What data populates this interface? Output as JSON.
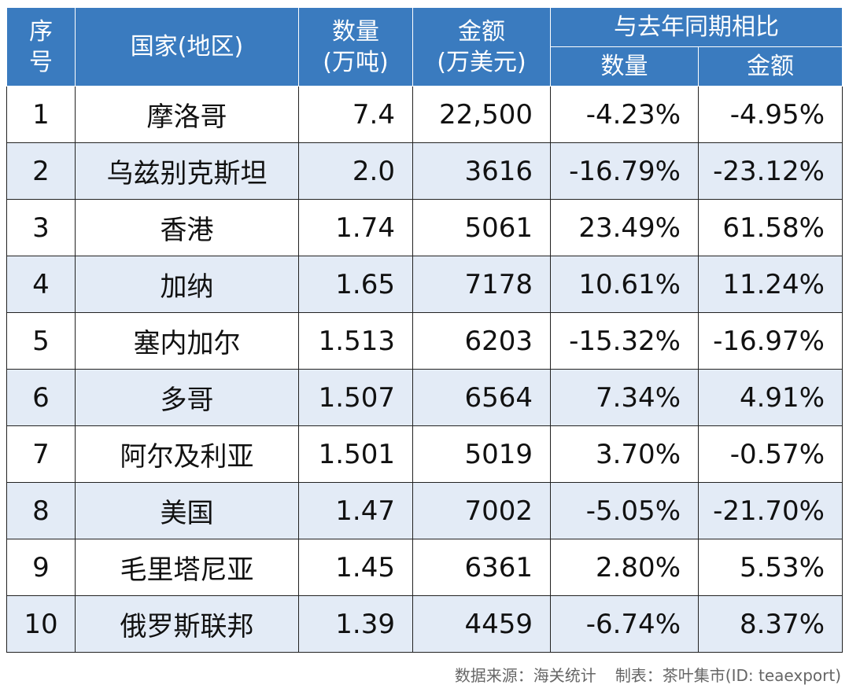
{
  "header": {
    "index": "序\n号",
    "index_line1": "序",
    "index_line2": "号",
    "country": "国家(地区)",
    "quantity_line1": "数量",
    "quantity_line2": "(万吨)",
    "amount_line1": "金额",
    "amount_line2": "(万美元)",
    "yoy_group": "与去年同期相比",
    "yoy_quantity": "数量",
    "yoy_amount": "金额"
  },
  "rows": [
    {
      "index": "1",
      "country": "摩洛哥",
      "quantity": "7.4",
      "amount": "22,500",
      "yoy_quantity": "-4.23%",
      "yoy_amount": "-4.95%"
    },
    {
      "index": "2",
      "country": "乌兹别克斯坦",
      "quantity": "2.0",
      "amount": "3616",
      "yoy_quantity": "-16.79%",
      "yoy_amount": "-23.12%"
    },
    {
      "index": "3",
      "country": "香港",
      "quantity": "1.74",
      "amount": "5061",
      "yoy_quantity": "23.49%",
      "yoy_amount": "61.58%"
    },
    {
      "index": "4",
      "country": "加纳",
      "quantity": "1.65",
      "amount": "7178",
      "yoy_quantity": "10.61%",
      "yoy_amount": "11.24%"
    },
    {
      "index": "5",
      "country": "塞内加尔",
      "quantity": "1.513",
      "amount": "6203",
      "yoy_quantity": "-15.32%",
      "yoy_amount": "-16.97%"
    },
    {
      "index": "6",
      "country": "多哥",
      "quantity": "1.507",
      "amount": "6564",
      "yoy_quantity": "7.34%",
      "yoy_amount": "4.91%"
    },
    {
      "index": "7",
      "country": "阿尔及利亚",
      "quantity": "1.501",
      "amount": "5019",
      "yoy_quantity": "3.70%",
      "yoy_amount": "-0.57%"
    },
    {
      "index": "8",
      "country": "美国",
      "quantity": "1.47",
      "amount": "7002",
      "yoy_quantity": "-5.05%",
      "yoy_amount": "-21.70%"
    },
    {
      "index": "9",
      "country": "毛里塔尼亚",
      "quantity": "1.45",
      "amount": "6361",
      "yoy_quantity": "2.80%",
      "yoy_amount": "5.53%"
    },
    {
      "index": "10",
      "country": "俄罗斯联邦",
      "quantity": "1.39",
      "amount": "4459",
      "yoy_quantity": "-6.74%",
      "yoy_amount": "8.37%"
    }
  ],
  "footer": {
    "source": "数据来源：海关统计",
    "credit": "制表：茶叶集市(ID: teaexport)"
  },
  "colors": {
    "header_bg": "#3a7bbf",
    "header_text": "#ffffff",
    "alt_row_bg": "#e3ebf6",
    "border": "#222222",
    "footer_text": "#666666"
  }
}
